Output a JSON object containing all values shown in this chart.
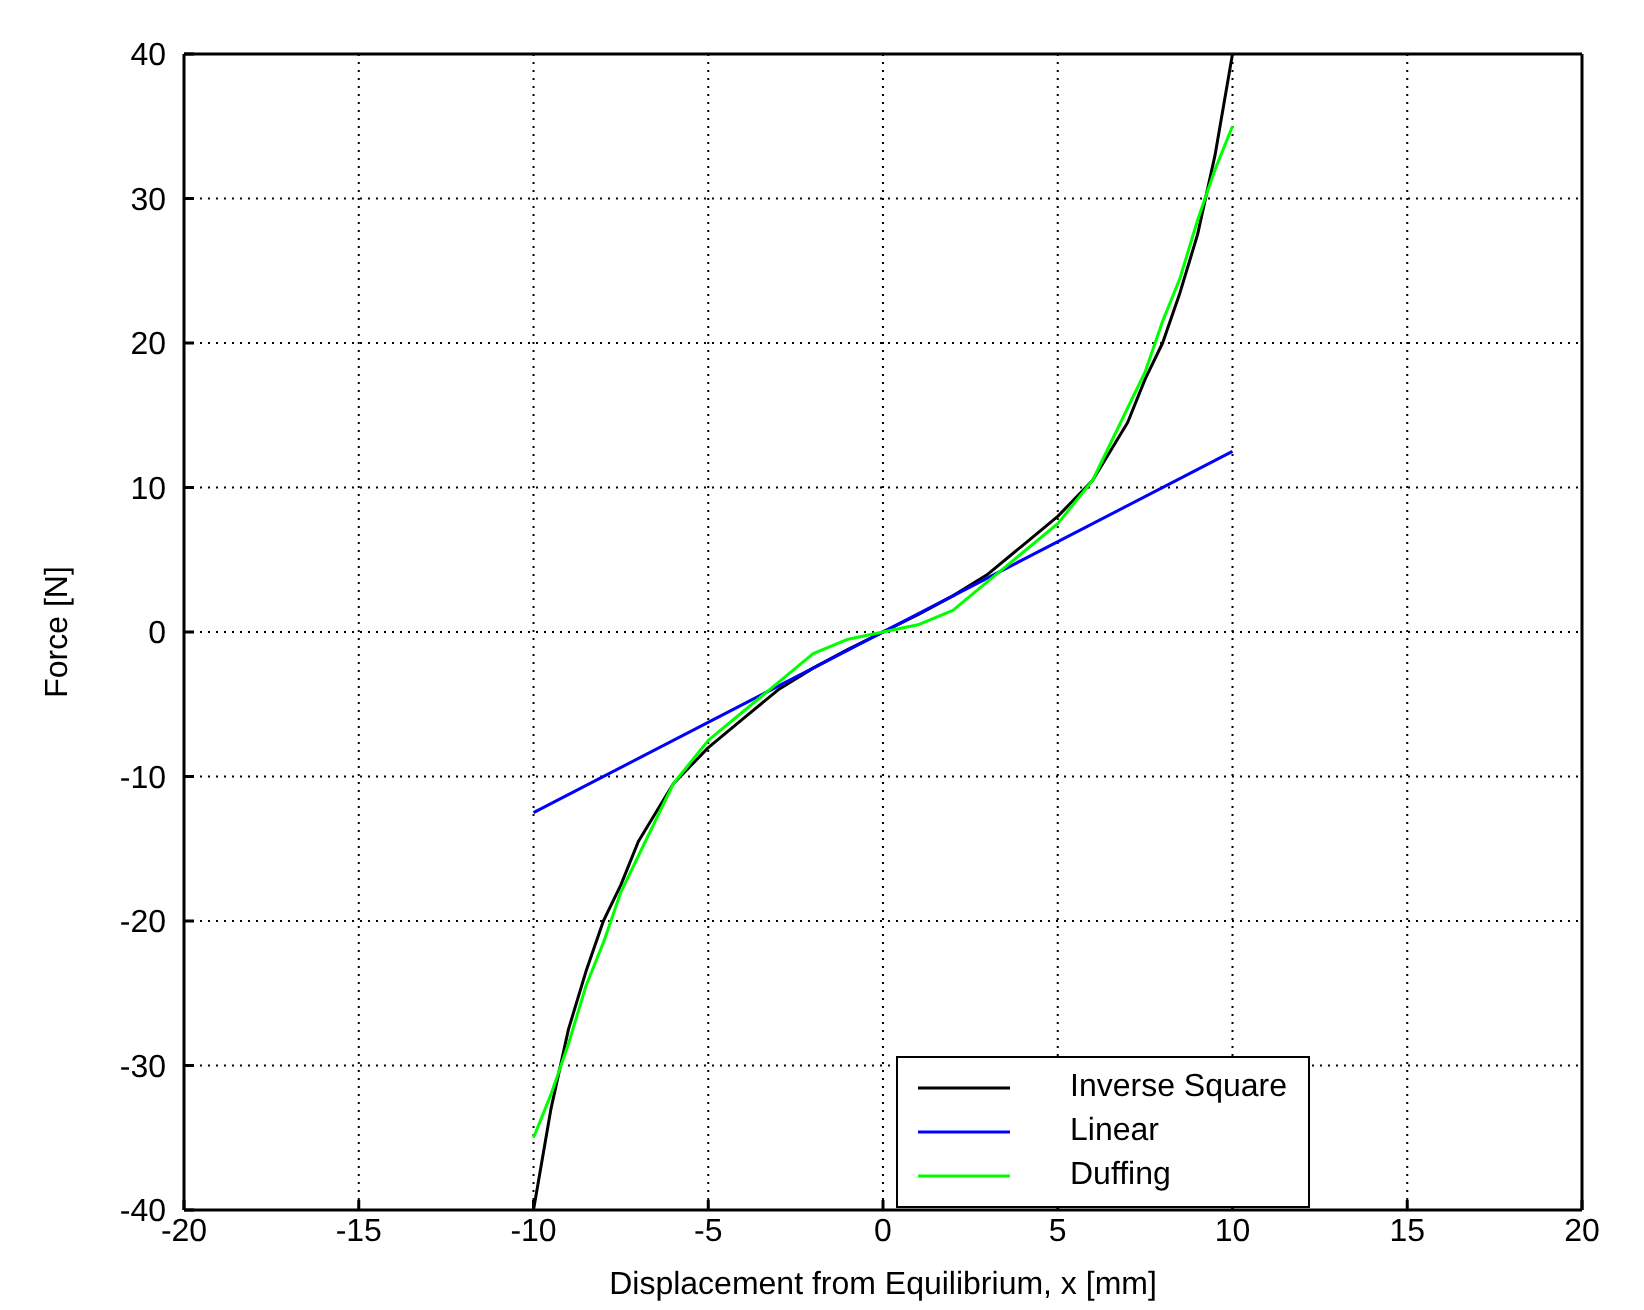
{
  "chart_data": {
    "type": "line",
    "xlabel": "Displacement from Equilibrium, x [mm]",
    "ylabel": "Force [N]",
    "xlim": [
      -20,
      20
    ],
    "xticks": [
      -20,
      -15,
      -10,
      -5,
      0,
      5,
      10,
      15,
      20
    ],
    "ylim": [
      -40,
      40
    ],
    "yticks": [
      -40,
      -30,
      -20,
      -10,
      0,
      10,
      20,
      30,
      40
    ],
    "grid": true,
    "legend": "bottom right",
    "line_style": "solid",
    "marker": "none",
    "series": [
      {
        "name": "Inverse Square",
        "color": "#000000",
        "x": [
          -10,
          -9.5,
          -9,
          -8.5,
          -8,
          -7.5,
          -7,
          -6,
          -5,
          -4,
          -3,
          -2,
          -1,
          0,
          1,
          2,
          3,
          4,
          5,
          6,
          7,
          7.5,
          8,
          8.5,
          9,
          9.5,
          10
        ],
        "values": [
          -40,
          -33,
          -27.5,
          -23.5,
          -20,
          -17.5,
          -14.5,
          -10.5,
          -8,
          -6,
          -4,
          -2.5,
          -1.2,
          0,
          1.2,
          2.5,
          4,
          6,
          8,
          10.5,
          14.5,
          17.5,
          20,
          23.5,
          27.5,
          33,
          40
        ]
      },
      {
        "name": "Linear",
        "color": "#0000ff",
        "x": [
          -10,
          10
        ],
        "values": [
          -12.5,
          12.5
        ]
      },
      {
        "name": "Duffing",
        "color": "#00ff00",
        "x": [
          -10,
          -9.5,
          -9,
          -8.5,
          -8,
          -7.5,
          -7,
          -6,
          -5,
          -4,
          -3,
          -2,
          -1,
          0,
          1,
          2,
          3,
          4,
          5,
          6,
          7,
          7.5,
          8,
          8.5,
          9,
          9.5,
          10
        ],
        "values": [
          -35,
          -32,
          -28.5,
          -24.5,
          -21.5,
          -18,
          -15.5,
          -10.5,
          -7.5,
          -5.5,
          -3.5,
          -1.5,
          -0.5,
          0,
          0.5,
          1.5,
          3.5,
          5.5,
          7.5,
          10.5,
          15.5,
          18,
          21.5,
          24.5,
          28.5,
          32,
          35
        ]
      }
    ]
  }
}
